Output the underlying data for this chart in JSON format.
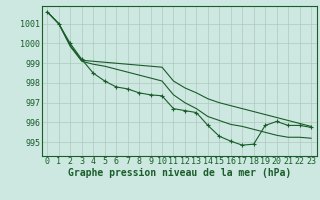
{
  "background_color": "#cce8e0",
  "grid_color": "#b0c8c0",
  "line_color": "#1a5c2a",
  "xlabel": "Graphe pression niveau de la mer (hPa)",
  "ylim": [
    994.3,
    1001.9
  ],
  "xlim": [
    -0.5,
    23.5
  ],
  "yticks": [
    995,
    996,
    997,
    998,
    999,
    1000,
    1001
  ],
  "xticks": [
    0,
    1,
    2,
    3,
    4,
    5,
    6,
    7,
    8,
    9,
    10,
    11,
    12,
    13,
    14,
    15,
    16,
    17,
    18,
    19,
    20,
    21,
    22,
    23
  ],
  "series_marked": [
    1001.6,
    1001.0,
    1000.0,
    999.2,
    998.5,
    998.1,
    997.8,
    997.7,
    997.5,
    997.4,
    997.35,
    996.7,
    996.6,
    996.5,
    995.85,
    995.3,
    995.05,
    994.85,
    994.9,
    995.85,
    996.05,
    995.85,
    995.85,
    995.75
  ],
  "series_upper": [
    1001.6,
    1001.0,
    999.9,
    999.15,
    999.1,
    999.05,
    999.0,
    998.95,
    998.9,
    998.85,
    998.8,
    998.1,
    997.75,
    997.5,
    997.2,
    997.0,
    996.85,
    996.7,
    996.55,
    996.4,
    996.25,
    996.1,
    995.95,
    995.8
  ],
  "series_lower": [
    1001.6,
    1001.0,
    999.85,
    999.1,
    998.95,
    998.85,
    998.7,
    998.55,
    998.4,
    998.25,
    998.1,
    997.4,
    997.0,
    996.7,
    996.3,
    996.1,
    995.9,
    995.8,
    995.65,
    995.5,
    995.35,
    995.25,
    995.25,
    995.2
  ],
  "xlabel_fontsize": 7,
  "tick_fontsize": 6
}
